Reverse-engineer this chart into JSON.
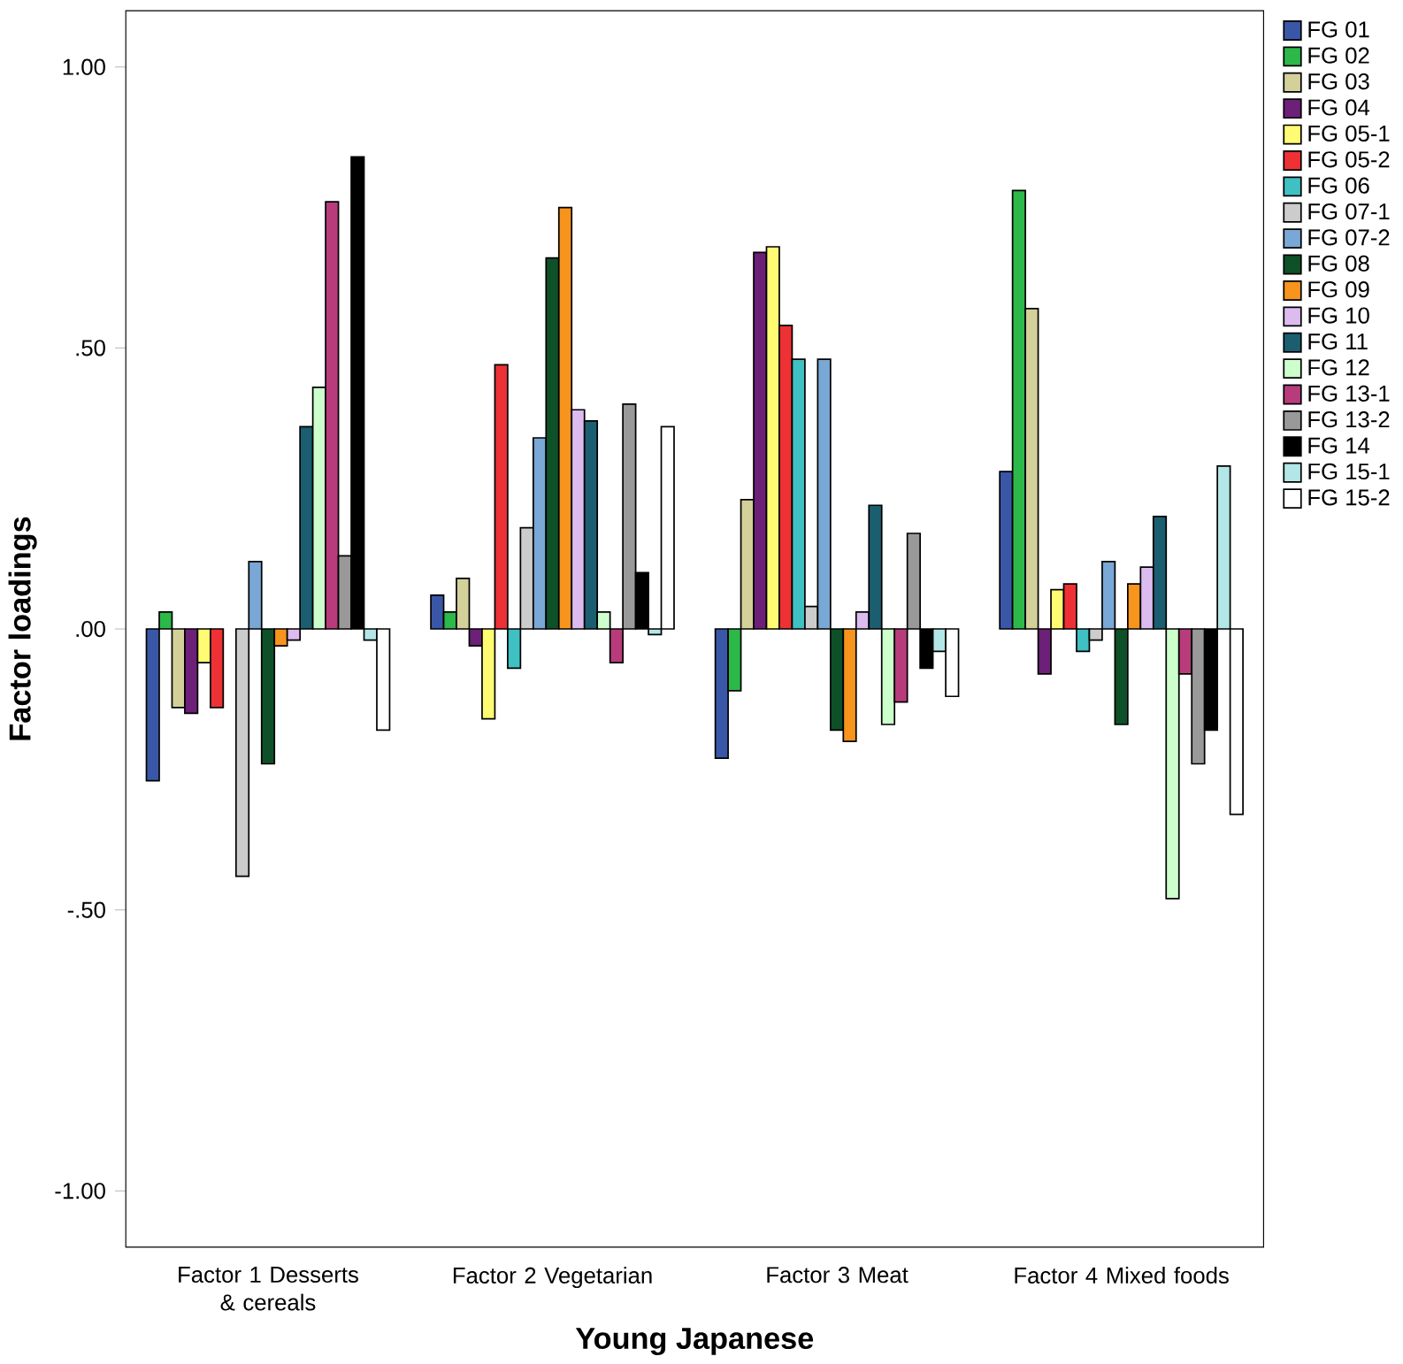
{
  "chart_data": {
    "type": "bar",
    "xlabel": "Young Japanese",
    "ylabel": "Factor loadings",
    "categories": [
      "Factor 1 Desserts & cereals",
      "Factor 2 Vegetarian",
      "Factor 3 Meat",
      "Factor 4 Mixed foods"
    ],
    "ylim": [
      -1.1,
      1.1
    ],
    "yticks": [
      {
        "value": -1,
        "label": "-1.00"
      },
      {
        "value": -0.5,
        "label": "-.50"
      },
      {
        "value": 0,
        "label": ".00"
      },
      {
        "value": 0.5,
        "label": ".50"
      },
      {
        "value": 1,
        "label": "1.00"
      }
    ],
    "grid": false,
    "legend": "right",
    "series": [
      {
        "name": "FG 01",
        "color": "#3a57a7",
        "values": [
          -0.27,
          0.06,
          -0.23,
          0.28
        ]
      },
      {
        "name": "FG 02",
        "color": "#2db84a",
        "values": [
          0.03,
          0.03,
          -0.11,
          0.78
        ]
      },
      {
        "name": "FG 03",
        "color": "#d4d09a",
        "values": [
          -0.14,
          0.09,
          0.23,
          0.57
        ]
      },
      {
        "name": "FG 04",
        "color": "#6d2077",
        "values": [
          -0.15,
          -0.03,
          0.67,
          -0.08
        ]
      },
      {
        "name": "FG 05-1",
        "color": "#fffb73",
        "values": [
          -0.06,
          -0.16,
          0.68,
          0.07
        ]
      },
      {
        "name": "FG 05-2",
        "color": "#ee3134",
        "values": [
          -0.14,
          0.47,
          0.54,
          0.08
        ]
      },
      {
        "name": "FG 06",
        "color": "#3fc0c3",
        "values": [
          null,
          -0.07,
          0.48,
          -0.04
        ]
      },
      {
        "name": "FG 07-1",
        "color": "#cccccc",
        "values": [
          -0.44,
          0.18,
          0.04,
          -0.02
        ]
      },
      {
        "name": "FG 07-2",
        "color": "#79a7d6",
        "values": [
          0.12,
          0.34,
          0.48,
          0.12
        ]
      },
      {
        "name": "FG 08",
        "color": "#0e5128",
        "values": [
          -0.24,
          0.66,
          -0.18,
          -0.17
        ]
      },
      {
        "name": "FG 09",
        "color": "#f7941d",
        "values": [
          -0.03,
          0.75,
          -0.2,
          0.08
        ]
      },
      {
        "name": "FG 10",
        "color": "#dcbcef",
        "values": [
          -0.02,
          0.39,
          0.03,
          0.11
        ]
      },
      {
        "name": "FG 11",
        "color": "#1b5e70",
        "values": [
          0.36,
          0.37,
          0.22,
          0.2
        ]
      },
      {
        "name": "FG 12",
        "color": "#ccffcc",
        "values": [
          0.43,
          0.03,
          -0.17,
          -0.48
        ]
      },
      {
        "name": "FG 13-1",
        "color": "#b83c7c",
        "values": [
          0.76,
          -0.06,
          -0.13,
          -0.08
        ]
      },
      {
        "name": "FG 13-2",
        "color": "#999999",
        "values": [
          0.13,
          0.4,
          0.17,
          -0.24
        ]
      },
      {
        "name": "FG 14",
        "color": "#000000",
        "values": [
          0.84,
          0.1,
          -0.07,
          -0.18
        ]
      },
      {
        "name": "FG 15-1",
        "color": "#b3e6e6",
        "values": [
          -0.02,
          -0.01,
          -0.04,
          0.29
        ]
      },
      {
        "name": "FG 15-2",
        "color": "#ffffff",
        "values": [
          -0.18,
          0.36,
          -0.12,
          -0.33
        ]
      }
    ]
  }
}
